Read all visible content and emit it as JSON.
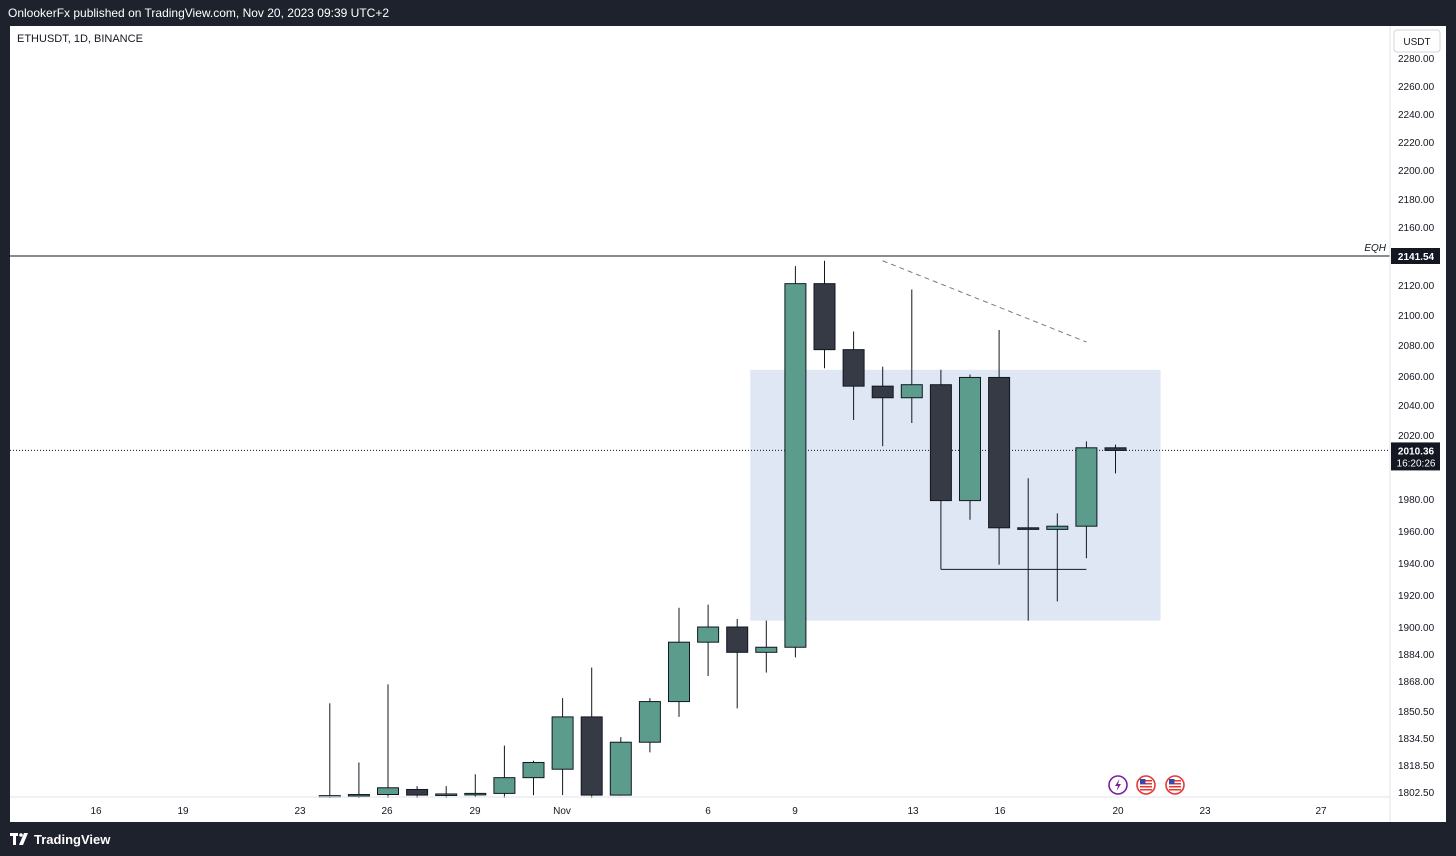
{
  "header": {
    "published_by": "OnlookerFx published on TradingView.com, Nov 20, 2023 09:39 UTC+2"
  },
  "footer": {
    "brand": "TradingView",
    "brand_icon": "tradingview-logo-icon"
  },
  "chart_data": {
    "type": "candlestick",
    "title": "ETHUSDT, 1D, BINANCE",
    "currency_label": "USDT",
    "x_tick_labels": [
      "16",
      "19",
      "23",
      "26",
      "29",
      "Nov",
      "6",
      "9",
      "13",
      "16",
      "20",
      "23",
      "27"
    ],
    "y_tick_labels": [
      "2280.00",
      "2260.00",
      "2240.00",
      "2220.00",
      "2200.00",
      "2180.00",
      "2160.00",
      "2120.00",
      "2100.00",
      "2080.00",
      "2060.00",
      "2040.00",
      "2020.00",
      "1980.00",
      "1960.00",
      "1940.00",
      "1920.00",
      "1900.00",
      "1884.00",
      "1868.00",
      "1850.50",
      "1834.50",
      "1818.50",
      "1802.50"
    ],
    "candles": [
      {
        "date": "Oct 24",
        "open": 1796,
        "high": 1855,
        "low": 1790,
        "close": 1796
      },
      {
        "date": "Oct 25",
        "open": 1797,
        "high": 1820,
        "low": 1790,
        "close": 1798
      },
      {
        "date": "Oct 26",
        "open": 1798,
        "high": 1866,
        "low": 1790,
        "close": 1805
      },
      {
        "date": "Oct 27",
        "open": 1804,
        "high": 1806,
        "low": 1790,
        "close": 1797
      },
      {
        "date": "Oct 28",
        "open": 1798,
        "high": 1806,
        "low": 1792,
        "close": 1799
      },
      {
        "date": "Oct 29",
        "open": 1799,
        "high": 1813,
        "low": 1794,
        "close": 1800
      },
      {
        "date": "Oct 30",
        "open": 1800,
        "high": 1830,
        "low": 1792,
        "close": 1811
      },
      {
        "date": "Oct 31",
        "open": 1811,
        "high": 1821,
        "low": 1797,
        "close": 1820
      },
      {
        "date": "Nov 1",
        "open": 1816,
        "high": 1858,
        "low": 1797,
        "close": 1847
      },
      {
        "date": "Nov 2",
        "open": 1847,
        "high": 1876,
        "low": 1790,
        "close": 1797
      },
      {
        "date": "Nov 3",
        "open": 1797,
        "high": 1835,
        "low": 1796,
        "close": 1832
      },
      {
        "date": "Nov 4",
        "open": 1832,
        "high": 1858,
        "low": 1826,
        "close": 1856
      },
      {
        "date": "Nov 5",
        "open": 1856,
        "high": 1912,
        "low": 1847,
        "close": 1891
      },
      {
        "date": "Nov 6",
        "open": 1891,
        "high": 1914,
        "low": 1871,
        "close": 1900
      },
      {
        "date": "Nov 7",
        "open": 1900,
        "high": 1905,
        "low": 1852,
        "close": 1885
      },
      {
        "date": "Nov 8",
        "open": 1885,
        "high": 1904,
        "low": 1873,
        "close": 1888
      },
      {
        "date": "Nov 9",
        "open": 1888,
        "high": 2134,
        "low": 1882,
        "close": 2121
      },
      {
        "date": "Nov 10",
        "open": 2121,
        "high": 2138,
        "low": 2065,
        "close": 2077
      },
      {
        "date": "Nov 11",
        "open": 2077,
        "high": 2089,
        "low": 2030,
        "close": 2053
      },
      {
        "date": "Nov 12",
        "open": 2053,
        "high": 2066,
        "low": 2013,
        "close": 2045
      },
      {
        "date": "Nov 13",
        "open": 2045,
        "high": 2117,
        "low": 2028,
        "close": 2054
      },
      {
        "date": "Nov 14",
        "open": 2054,
        "high": 2064,
        "low": 1936,
        "close": 1979
      },
      {
        "date": "Nov 15",
        "open": 1979,
        "high": 2061,
        "low": 1967,
        "close": 2059
      },
      {
        "date": "Nov 16",
        "open": 2059,
        "high": 2090,
        "low": 1939,
        "close": 1962
      },
      {
        "date": "Nov 17",
        "open": 1962,
        "high": 1993,
        "low": 1904,
        "close": 1961
      },
      {
        "date": "Nov 18",
        "open": 1961,
        "high": 1971,
        "low": 1916,
        "close": 1963
      },
      {
        "date": "Nov 19",
        "open": 1963,
        "high": 2016,
        "low": 1943,
        "close": 2012
      },
      {
        "date": "Nov 20",
        "open": 2012,
        "high": 2014,
        "low": 1996,
        "close": 2010.36
      }
    ],
    "eqh_level": {
      "label": "EQH",
      "value_label": "2141.54",
      "value": 2141.54
    },
    "current_price": {
      "value_label": "2010.36",
      "value": 2010.36,
      "countdown": "16:20:26"
    },
    "zone_box": {
      "date_from": "Nov 8",
      "date_to": "Nov 21",
      "top": 2064,
      "bottom": 1904
    },
    "range_line": {
      "date_from": "Nov 14",
      "date_to": "Nov 19",
      "value": 1936
    },
    "trend_line": {
      "date_from": "Nov 12",
      "date_to": "Nov 19",
      "from_value": 2138,
      "to_value": 2082
    },
    "colors": {
      "up": "#5b9c8c",
      "down": "#363a45",
      "zone": "#dfe7f4",
      "event_lightning": "#7b1fa2",
      "event_flag": "#e53935"
    },
    "event_icons": [
      "lightning-event-icon",
      "us-flag-event-icon",
      "us-flag-event-icon"
    ]
  }
}
